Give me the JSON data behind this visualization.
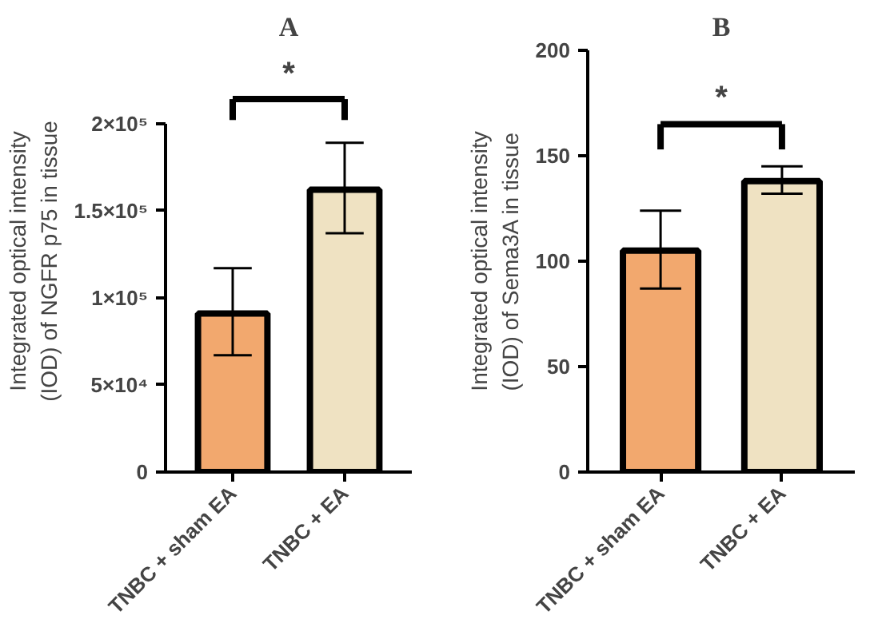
{
  "chart_data": [
    {
      "type": "bar",
      "title": "A",
      "ylabel": "Integrated optical intensity\n(IOD) of NGFR p75 in tissue",
      "categories": [
        "TNBC + sham EA",
        "TNBC + EA"
      ],
      "values": [
        91000,
        162000
      ],
      "colors": [
        "#f2a86e",
        "#efe2c2"
      ],
      "errors": [
        [
          67000,
          117000
        ],
        [
          137000,
          189000
        ]
      ],
      "ylim": [
        0,
        200000
      ],
      "yticks": [
        0,
        {
          "value": 50000,
          "label": "5×10⁴"
        },
        {
          "value": 100000,
          "label": "1×10⁵"
        },
        {
          "value": 150000,
          "label": "1.5×10⁵"
        },
        {
          "value": 200000,
          "label": "2×10⁵"
        }
      ],
      "grid": false,
      "annotations": [
        "*"
      ]
    },
    {
      "type": "bar",
      "title": "B",
      "ylabel": "Integrated optical intensity\n(IOD) of Sema3A in tissue",
      "categories": [
        "TNBC + sham EA",
        "TNBC + EA"
      ],
      "values": [
        105,
        138
      ],
      "colors": [
        "#f2a86e",
        "#efe2c2"
      ],
      "errors": [
        [
          87,
          124
        ],
        [
          132,
          145
        ]
      ],
      "ylim": [
        0,
        200
      ],
      "yticks": [
        0,
        50,
        100,
        150,
        200
      ],
      "grid": false,
      "annotations": [
        "*"
      ]
    }
  ]
}
